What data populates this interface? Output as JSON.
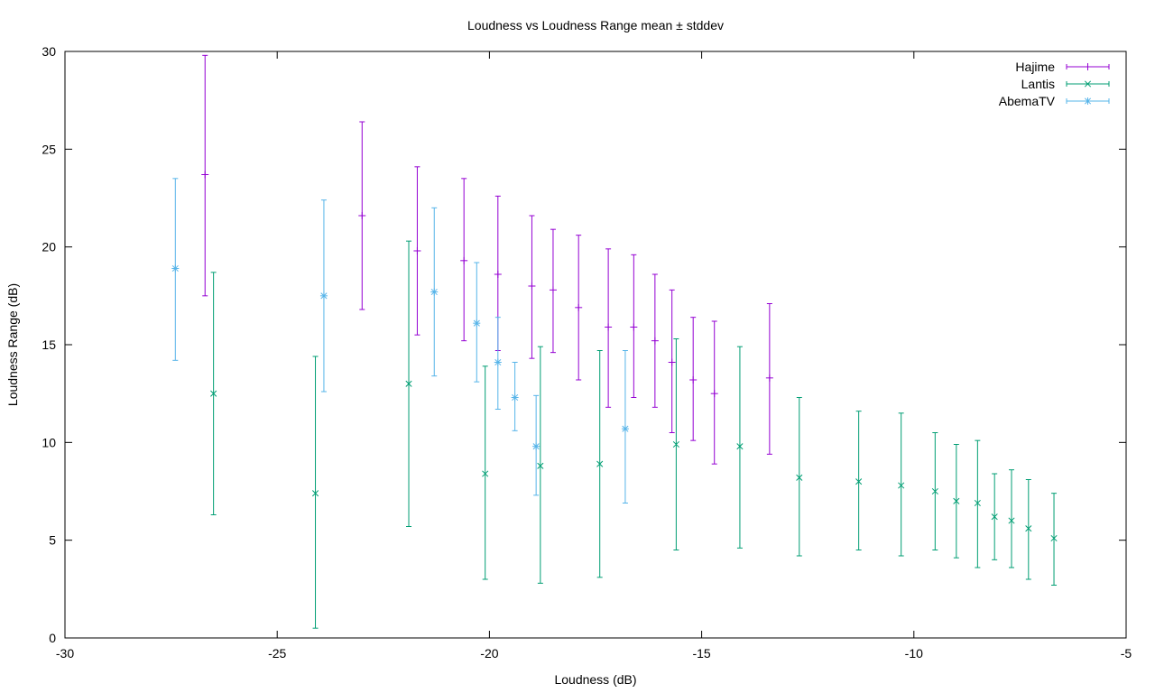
{
  "chart_data": {
    "type": "errorbar-scatter",
    "title": "Loudness vs Loudness Range mean ± stddev",
    "xlabel": "Loudness (dB)",
    "ylabel": "Loudness Range (dB)",
    "xlim": [
      -30,
      -5
    ],
    "ylim": [
      0,
      30
    ],
    "xticks": [
      -30,
      -25,
      -20,
      -15,
      -10,
      -5
    ],
    "yticks": [
      0,
      5,
      10,
      15,
      20,
      25,
      30
    ],
    "xtick_labels": [
      "-30",
      "-25",
      "-20",
      "-15",
      "-10",
      "-5"
    ],
    "ytick_labels": [
      "0",
      "5",
      "10",
      "15",
      "20",
      "25",
      "30"
    ],
    "grid": false,
    "legend": "top-right",
    "series": [
      {
        "name": "Hajime",
        "color": "#9400d3",
        "marker": "plus",
        "points": [
          {
            "x": -26.7,
            "y": 23.7,
            "lo": 17.5,
            "hi": 29.8
          },
          {
            "x": -23.0,
            "y": 21.6,
            "lo": 16.8,
            "hi": 26.4
          },
          {
            "x": -21.7,
            "y": 19.8,
            "lo": 15.5,
            "hi": 24.1
          },
          {
            "x": -20.6,
            "y": 19.3,
            "lo": 15.2,
            "hi": 23.5
          },
          {
            "x": -19.8,
            "y": 18.6,
            "lo": 14.7,
            "hi": 22.6
          },
          {
            "x": -19.0,
            "y": 18.0,
            "lo": 14.3,
            "hi": 21.6
          },
          {
            "x": -18.5,
            "y": 17.8,
            "lo": 14.6,
            "hi": 20.9
          },
          {
            "x": -17.9,
            "y": 16.9,
            "lo": 13.2,
            "hi": 20.6
          },
          {
            "x": -17.2,
            "y": 15.9,
            "lo": 11.8,
            "hi": 19.9
          },
          {
            "x": -16.6,
            "y": 15.9,
            "lo": 12.3,
            "hi": 19.6
          },
          {
            "x": -16.1,
            "y": 15.2,
            "lo": 11.8,
            "hi": 18.6
          },
          {
            "x": -15.7,
            "y": 14.1,
            "lo": 10.5,
            "hi": 17.8
          },
          {
            "x": -15.2,
            "y": 13.2,
            "lo": 10.1,
            "hi": 16.4
          },
          {
            "x": -14.7,
            "y": 12.5,
            "lo": 8.9,
            "hi": 16.2
          },
          {
            "x": -13.4,
            "y": 13.3,
            "lo": 9.4,
            "hi": 17.1
          }
        ]
      },
      {
        "name": "Lantis",
        "color": "#009e73",
        "marker": "cross",
        "points": [
          {
            "x": -26.5,
            "y": 12.5,
            "lo": 6.3,
            "hi": 18.7
          },
          {
            "x": -24.1,
            "y": 7.4,
            "lo": 0.5,
            "hi": 14.4
          },
          {
            "x": -21.9,
            "y": 13.0,
            "lo": 5.7,
            "hi": 20.3
          },
          {
            "x": -20.1,
            "y": 8.4,
            "lo": 3.0,
            "hi": 13.9
          },
          {
            "x": -18.8,
            "y": 8.8,
            "lo": 2.8,
            "hi": 14.9
          },
          {
            "x": -17.4,
            "y": 8.9,
            "lo": 3.1,
            "hi": 14.7
          },
          {
            "x": -15.6,
            "y": 9.9,
            "lo": 4.5,
            "hi": 15.3
          },
          {
            "x": -14.1,
            "y": 9.8,
            "lo": 4.6,
            "hi": 14.9
          },
          {
            "x": -12.7,
            "y": 8.2,
            "lo": 4.2,
            "hi": 12.3
          },
          {
            "x": -11.3,
            "y": 8.0,
            "lo": 4.5,
            "hi": 11.6
          },
          {
            "x": -10.3,
            "y": 7.8,
            "lo": 4.2,
            "hi": 11.5
          },
          {
            "x": -9.5,
            "y": 7.5,
            "lo": 4.5,
            "hi": 10.5
          },
          {
            "x": -9.0,
            "y": 7.0,
            "lo": 4.1,
            "hi": 9.9
          },
          {
            "x": -8.5,
            "y": 6.9,
            "lo": 3.6,
            "hi": 10.1
          },
          {
            "x": -8.1,
            "y": 6.2,
            "lo": 4.0,
            "hi": 8.4
          },
          {
            "x": -7.7,
            "y": 6.0,
            "lo": 3.6,
            "hi": 8.6
          },
          {
            "x": -7.3,
            "y": 5.6,
            "lo": 3.0,
            "hi": 8.1
          },
          {
            "x": -6.7,
            "y": 5.1,
            "lo": 2.7,
            "hi": 7.4
          }
        ]
      },
      {
        "name": "AbemaTV",
        "color": "#56b4e9",
        "marker": "star",
        "points": [
          {
            "x": -27.4,
            "y": 18.9,
            "lo": 14.2,
            "hi": 23.5
          },
          {
            "x": -23.9,
            "y": 17.5,
            "lo": 12.6,
            "hi": 22.4
          },
          {
            "x": -21.3,
            "y": 17.7,
            "lo": 13.4,
            "hi": 22.0
          },
          {
            "x": -20.3,
            "y": 16.1,
            "lo": 13.1,
            "hi": 19.2
          },
          {
            "x": -19.8,
            "y": 14.1,
            "lo": 11.7,
            "hi": 16.4
          },
          {
            "x": -19.4,
            "y": 12.3,
            "lo": 10.6,
            "hi": 14.1
          },
          {
            "x": -18.9,
            "y": 9.8,
            "lo": 7.3,
            "hi": 12.4
          },
          {
            "x": -16.8,
            "y": 10.7,
            "lo": 6.9,
            "hi": 14.7
          }
        ]
      }
    ]
  }
}
